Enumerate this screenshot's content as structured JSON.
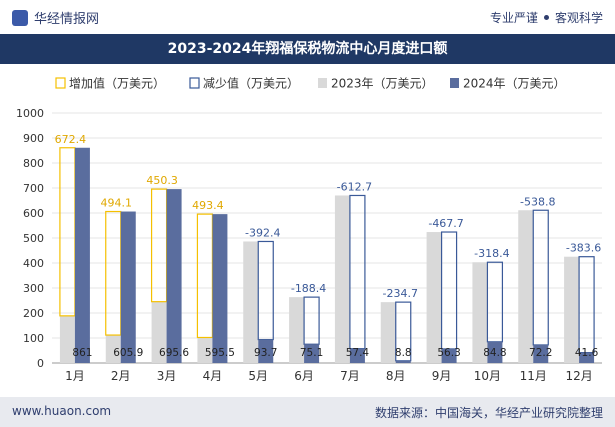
{
  "header": {
    "brand": "华经情报网",
    "tagline_left": "专业严谨",
    "tagline_right": "客观科学"
  },
  "footer": {
    "site": "www.huaon.com",
    "source": "数据来源：中国海关，华经产业研究院整理"
  },
  "colors": {
    "title_bg": "#1f3864",
    "increase": "#f5c000",
    "decrease": "#3a5998",
    "y2023": "#d9d9d9",
    "y2024": "#5a6d9e"
  },
  "chart_data": {
    "type": "bar",
    "title": "2023-2024年翔福保税物流中心月度进口额",
    "categories": [
      "1月",
      "2月",
      "3月",
      "4月",
      "5月",
      "6月",
      "7月",
      "8月",
      "9月",
      "10月",
      "11月",
      "12月"
    ],
    "series": [
      {
        "name": "2023年（万美元）",
        "values": [
          188.6,
          111.8,
          245.3,
          102.1,
          486.1,
          263.5,
          670.1,
          243.5,
          523.9,
          403.1,
          611.0,
          425.2
        ]
      },
      {
        "name": "2024年（万美元）",
        "values": [
          861,
          605.9,
          695.6,
          595.5,
          93.7,
          75.1,
          57.4,
          8.8,
          56.3,
          84.8,
          72.2,
          41.6
        ]
      }
    ],
    "change": {
      "increase_label": "增加值（万美元）",
      "decrease_label": "减少值（万美元）",
      "values": [
        672.4,
        494.1,
        450.3,
        493.4,
        -392.4,
        -188.4,
        -612.7,
        -234.7,
        -467.7,
        -318.4,
        -538.8,
        -383.6
      ]
    },
    "y_ticks": [
      0,
      100,
      200,
      300,
      400,
      500,
      600,
      700,
      800,
      900,
      1000
    ],
    "ylim": [
      0,
      1000
    ],
    "legend_position": "top"
  }
}
